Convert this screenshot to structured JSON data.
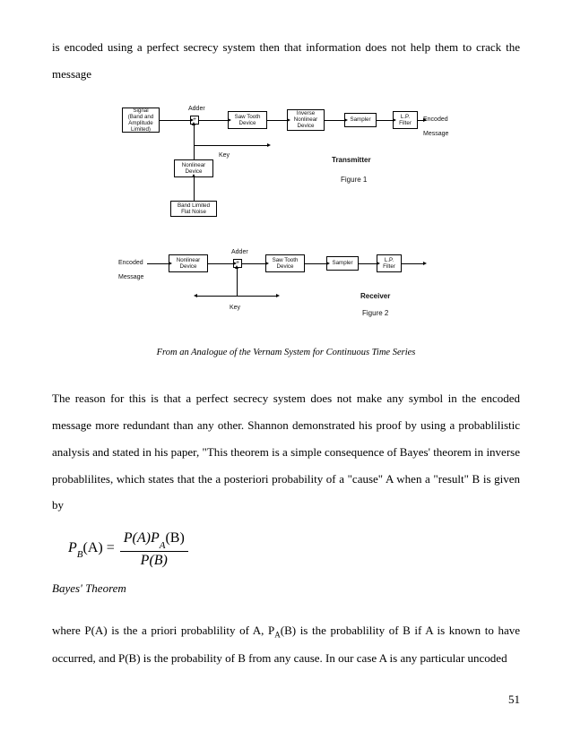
{
  "para1": "is encoded using a perfect secrecy system then that information does not help them to crack the message",
  "caption": "From an Analogue of the Vernam System for Continuous Time Series",
  "para2": "The reason for this is that a perfect secrecy system does not make any symbol in the encoded message more redundant than any other.  Shannon demonstrated his proof by using a probablilistic analysis and stated in his paper, \"This theorem is a simple consequence of Bayes' theorem in inverse probablilites, which states that the a posteriori probability of a \"cause\" A when a \"result\" B is given by",
  "formula_lhs": "P",
  "formula_lhs_sub": "B",
  "formula_lhs_arg": "(A) =",
  "formula_num_a": "P(A)P",
  "formula_num_sub": "A",
  "formula_num_b": "(B)",
  "formula_den": "P(B)",
  "theorem": "Bayes' Theorem",
  "para3_a": "where P(A) is the a priori probablility of A, P",
  "para3_sub": "A",
  "para3_b": "(B) is the probablility of B if A is known to have occurred, and P(B) is the probability of B from any cause.  In our case A is any particular uncoded",
  "pagenum": "51",
  "diagram": {
    "fig1": {
      "signal": "Signal\n(Band and\nAmplitude\nLimited)",
      "adder": "Adder",
      "sawtooth": "Saw Tooth\nDevice",
      "inverse": "Inverse\nNonlinear\nDevice",
      "sampler": "Sampler",
      "lp": "L.P.\nFilter",
      "encoded": "Encoded\nMessage",
      "nonlinear": "Nonlinear\nDevice",
      "flatnoise": "Band Limited\nFlat Noise",
      "key": "Key",
      "transmitter": "Transmitter",
      "figure": "Figure 1"
    },
    "fig2": {
      "encoded": "Encoded\nMessage",
      "nonlinear": "Nonlinear\nDevice",
      "adder": "Adder",
      "sawtooth": "Saw Tooth\nDevice",
      "sampler": "Sampler",
      "lp": "L.P.\nFilter",
      "key": "Key",
      "receiver": "Receiver",
      "figure": "Figure 2"
    }
  }
}
